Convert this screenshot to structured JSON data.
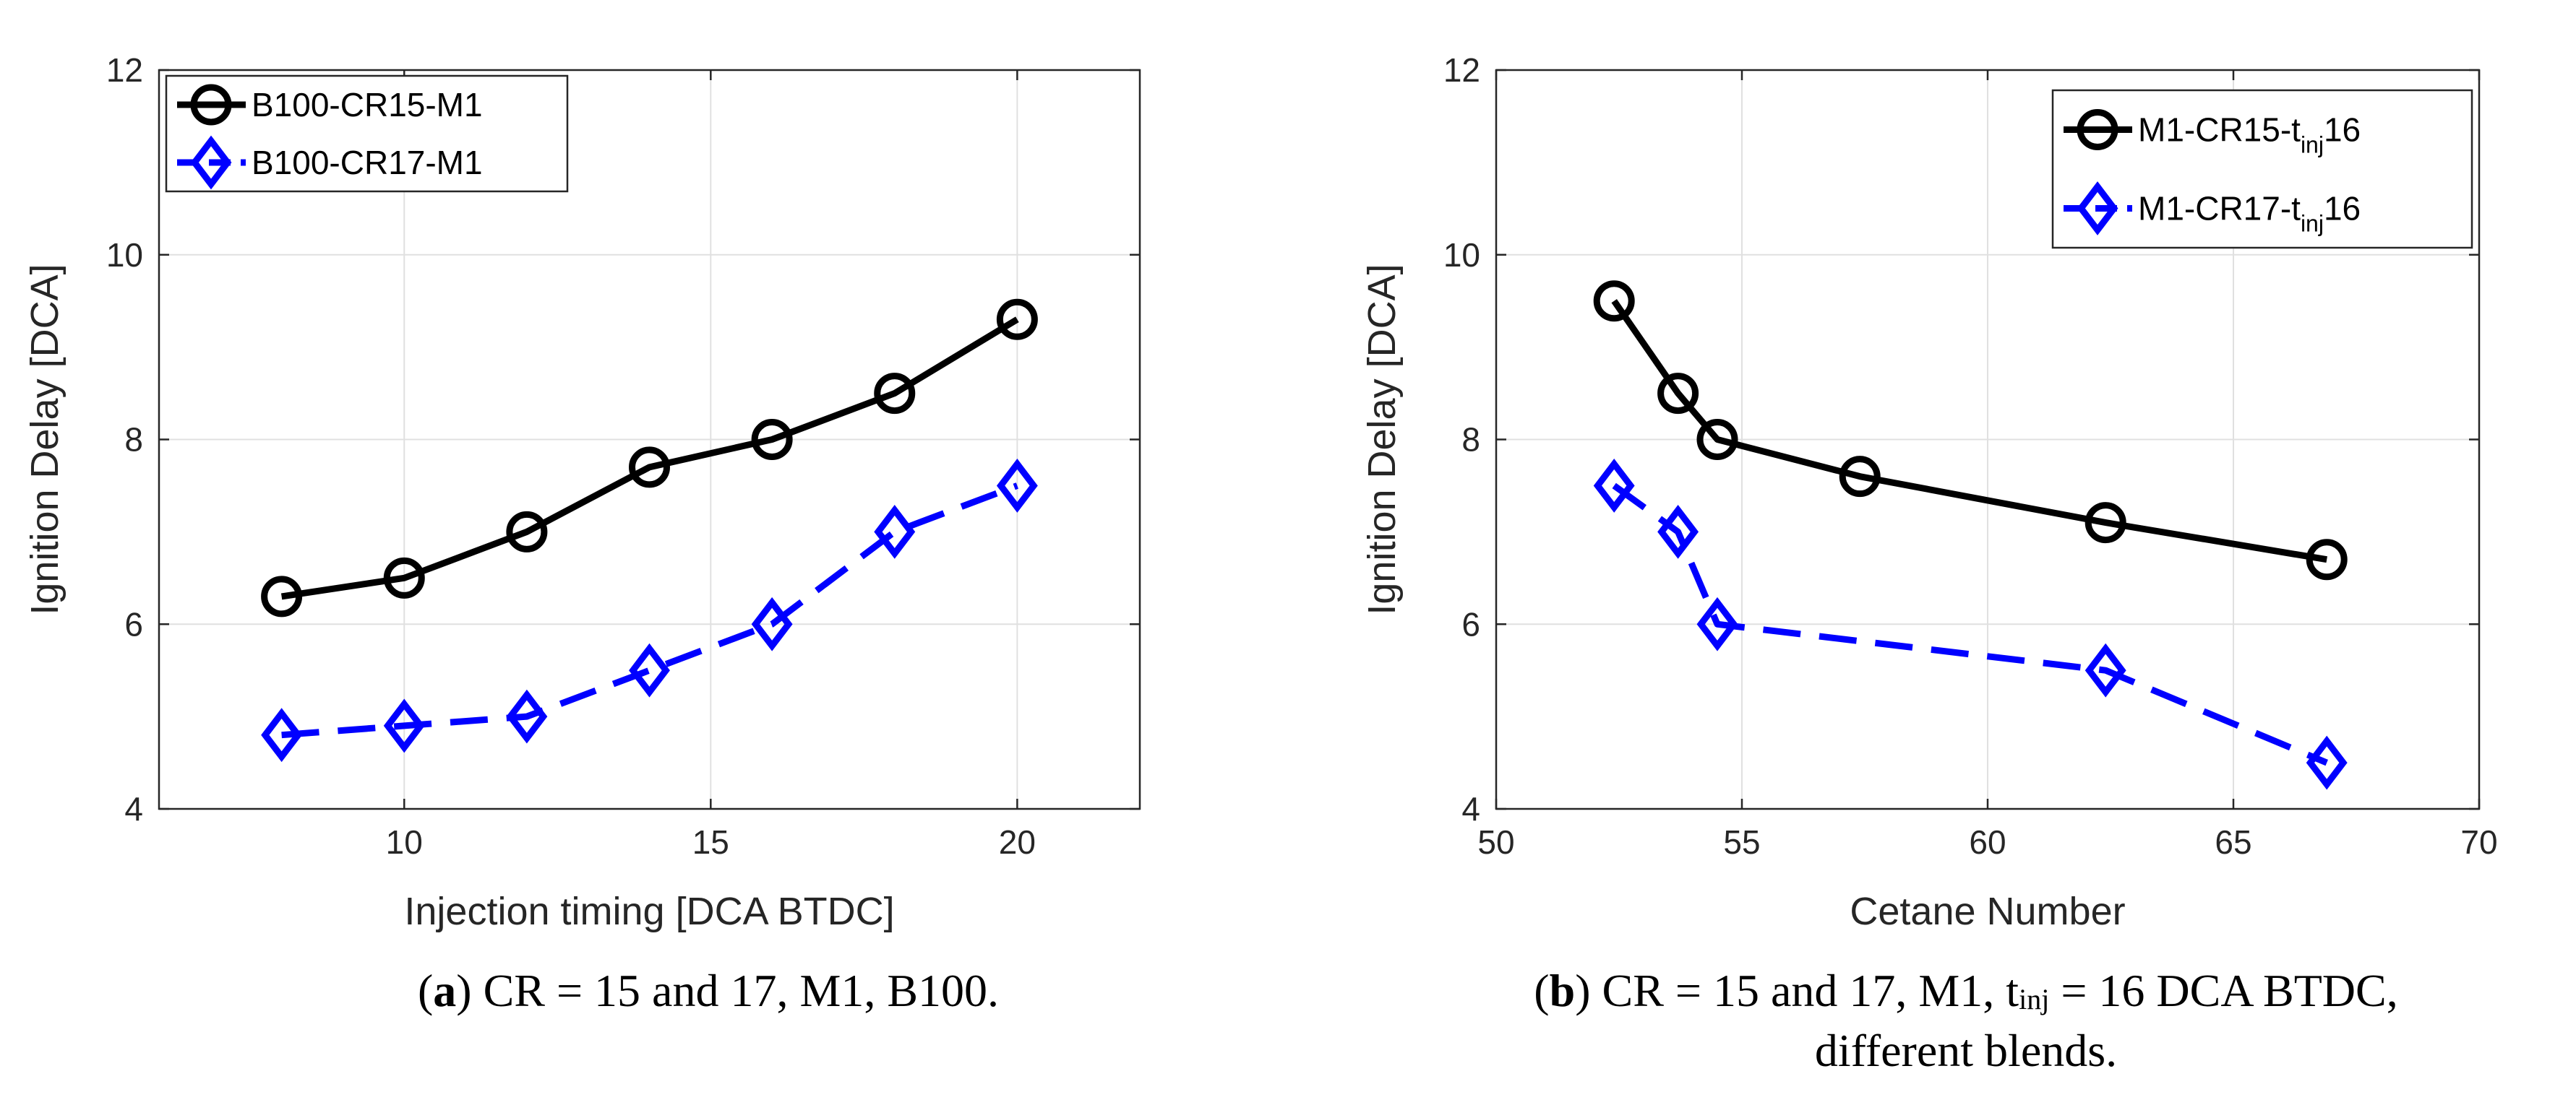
{
  "chart_data": [
    {
      "type": "line",
      "panel": "a",
      "xlabel": "Injection timing [DCA BTDC]",
      "ylabel": "Ignition Delay [DCA]",
      "xlim": [
        6,
        22
      ],
      "ylim": [
        4,
        12
      ],
      "xticks": [
        10,
        15,
        20
      ],
      "yticks": [
        4,
        6,
        8,
        10,
        12
      ],
      "grid": true,
      "legend_location": "top-left",
      "series": [
        {
          "name": "B100-CR15-M1",
          "color": "#000000",
          "style": "solid",
          "marker": "circle",
          "x": [
            8,
            10,
            12,
            14,
            16,
            18,
            20
          ],
          "y": [
            6.3,
            6.5,
            7.0,
            7.7,
            8.0,
            8.5,
            9.3
          ]
        },
        {
          "name": "B100-CR17-M1",
          "color": "#0000ff",
          "style": "dashed",
          "marker": "diamond",
          "x": [
            8,
            10,
            12,
            14,
            16,
            18,
            20
          ],
          "y": [
            4.8,
            4.9,
            5.0,
            5.5,
            6.0,
            7.0,
            7.5
          ]
        }
      ],
      "caption": {
        "letter": "a",
        "text": "CR = 15 and 17, M1, B100."
      }
    },
    {
      "type": "line",
      "panel": "b",
      "xlabel": "Cetane Number",
      "ylabel": "Ignition Delay [DCA]",
      "xlim": [
        50,
        70
      ],
      "ylim": [
        4,
        12
      ],
      "xticks": [
        50,
        55,
        60,
        65,
        70
      ],
      "yticks": [
        4,
        6,
        8,
        10,
        12
      ],
      "grid": true,
      "legend_location": "top-right",
      "series": [
        {
          "name": "M1-CR15-t",
          "name_sub": "inj",
          "name_suffix": "16",
          "color": "#000000",
          "style": "solid",
          "marker": "circle",
          "x": [
            52.4,
            53.7,
            54.5,
            57.4,
            62.4,
            66.9
          ],
          "y": [
            9.5,
            8.5,
            8.0,
            7.6,
            7.1,
            6.7
          ]
        },
        {
          "name": "M1-CR17-t",
          "name_sub": "inj",
          "name_suffix": "16",
          "color": "#0000ff",
          "style": "dashed",
          "marker": "diamond",
          "x": [
            52.4,
            53.7,
            54.5,
            62.4,
            66.9
          ],
          "y": [
            7.5,
            7.0,
            6.0,
            5.5,
            4.5
          ]
        }
      ],
      "caption": {
        "letter": "b",
        "text_pre": "CR = 15 and 17, M1, t",
        "text_sub": "inj",
        "text_post": " = 16 DCA BTDC,",
        "line2": "different blends."
      }
    }
  ]
}
